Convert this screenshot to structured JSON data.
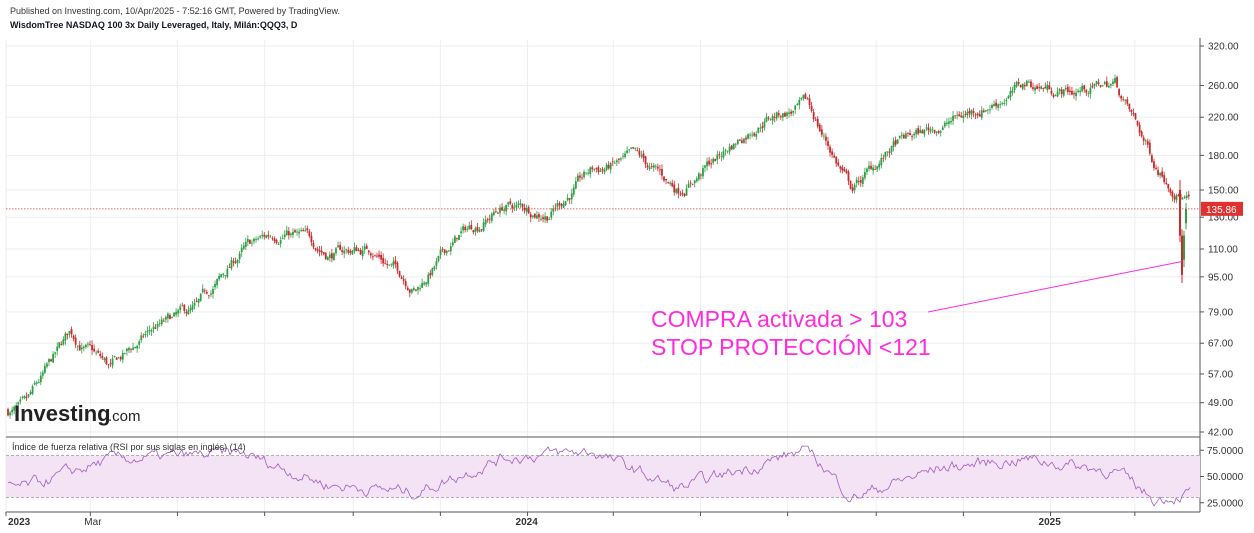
{
  "header": {
    "published": "Published on Investing.com, 10/Apr/2025 - 7:52:16 GMT, Powered by TradingView.",
    "instrument": "WisdomTree NASDAQ 100 3x Daily Leveraged, Italy, Milán:QQQ3, D"
  },
  "logo": {
    "text": "Investing",
    "suffix": ".com"
  },
  "colors": {
    "up": "#2f9e44",
    "down": "#c92a2a",
    "price_line": "#e03131",
    "annotation": "#ff2bdc",
    "rsi_line": "#a05cc2",
    "rsi_band": "#f3e3f5",
    "grid": "#eeeeee"
  },
  "annotation": {
    "line1": "COMPRA activada > 103",
    "line2": "STOP PROTECCIÓN <121",
    "arrow_target_price": 103
  },
  "chart_data": [
    {
      "type": "candlestick",
      "title": "WisdomTree NASDAQ 100 3x Daily Leveraged, Italy, Milán:QQQ3, D",
      "y_scale": "log",
      "ylim": [
        42,
        320
      ],
      "y_ticks": [
        "320.00",
        "260.00",
        "220.00",
        "180.00",
        "150.00",
        "130.00",
        "110.00",
        "95.00",
        "79.00",
        "67.00",
        "57.00",
        "49.00",
        "42.00"
      ],
      "x_ticks": [
        "2023",
        "Mar",
        "2024",
        "2025"
      ],
      "current_price_label": "135.86",
      "current_price": 135.86,
      "date_range": [
        "2023-01",
        "2025-04-10"
      ],
      "approx_path": [
        {
          "date": "2023-01",
          "close": 47
        },
        {
          "date": "2023-02",
          "close": 70
        },
        {
          "date": "2023-03",
          "close": 58
        },
        {
          "date": "2023-04",
          "close": 72
        },
        {
          "date": "2023-05",
          "close": 79
        },
        {
          "date": "2023-06",
          "close": 108
        },
        {
          "date": "2023-07",
          "close": 122
        },
        {
          "date": "2023-08",
          "close": 108
        },
        {
          "date": "2023-09",
          "close": 110
        },
        {
          "date": "2023-10",
          "close": 90
        },
        {
          "date": "2023-11",
          "close": 118
        },
        {
          "date": "2023-12",
          "close": 138
        },
        {
          "date": "2024-01",
          "close": 134
        },
        {
          "date": "2024-02",
          "close": 165
        },
        {
          "date": "2024-03",
          "close": 175
        },
        {
          "date": "2024-04",
          "close": 150
        },
        {
          "date": "2024-05",
          "close": 180
        },
        {
          "date": "2024-06",
          "close": 222
        },
        {
          "date": "2024-07",
          "close": 232
        },
        {
          "date": "2024-08",
          "close": 150
        },
        {
          "date": "2024-09",
          "close": 190
        },
        {
          "date": "2024-10",
          "close": 210
        },
        {
          "date": "2024-11",
          "close": 233
        },
        {
          "date": "2024-12",
          "close": 262
        },
        {
          "date": "2025-01",
          "close": 252
        },
        {
          "date": "2025-02",
          "close": 264
        },
        {
          "date": "2025-03",
          "close": 172
        },
        {
          "date": "2025-04",
          "close": 135.86
        }
      ]
    },
    {
      "type": "line",
      "title": "Índice de fuerza relativa (RSI por sus siglas en inglés) (14)",
      "ylim": [
        20,
        80
      ],
      "y_ticks": [
        "75.0000",
        "50.0000",
        "25.0000"
      ],
      "band": [
        30,
        70
      ],
      "approx_path": [
        {
          "date": "2023-01",
          "value": 40
        },
        {
          "date": "2023-03",
          "value": 66
        },
        {
          "date": "2023-06",
          "value": 72
        },
        {
          "date": "2023-08",
          "value": 42
        },
        {
          "date": "2023-10",
          "value": 35
        },
        {
          "date": "2023-12",
          "value": 68
        },
        {
          "date": "2024-02",
          "value": 74
        },
        {
          "date": "2024-04",
          "value": 38
        },
        {
          "date": "2024-07",
          "value": 76
        },
        {
          "date": "2024-08",
          "value": 30
        },
        {
          "date": "2024-10",
          "value": 58
        },
        {
          "date": "2024-12",
          "value": 67
        },
        {
          "date": "2025-02",
          "value": 55
        },
        {
          "date": "2025-03",
          "value": 28
        },
        {
          "date": "2025-04",
          "value": 36
        }
      ]
    }
  ]
}
